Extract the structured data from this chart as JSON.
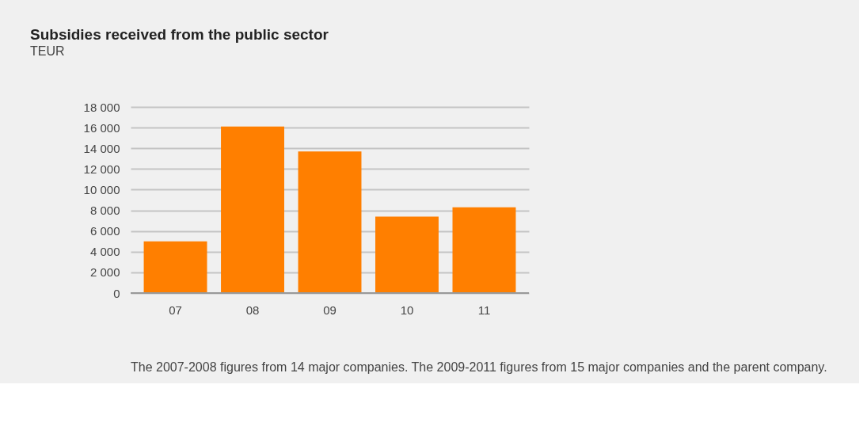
{
  "chart_data": {
    "type": "bar",
    "title": "Subsidies received from the public sector",
    "subtitle": "TEUR",
    "categories": [
      "07",
      "08",
      "09",
      "10",
      "11"
    ],
    "values": [
      5000,
      16100,
      13700,
      7400,
      8300
    ],
    "color": "#ff7f00",
    "ylim": [
      0,
      18000
    ],
    "yticks": [
      {
        "value": 0,
        "label": "0"
      },
      {
        "value": 2000,
        "label": "2 000"
      },
      {
        "value": 4000,
        "label": "4 000"
      },
      {
        "value": 6000,
        "label": "6 000"
      },
      {
        "value": 8000,
        "label": "8 000"
      },
      {
        "value": 10000,
        "label": "10 000"
      },
      {
        "value": 12000,
        "label": "12 000"
      },
      {
        "value": 14000,
        "label": "14 000"
      },
      {
        "value": 16000,
        "label": "16 000"
      },
      {
        "value": 18000,
        "label": "18 000"
      }
    ],
    "grid": "y",
    "annotations": [
      "The 2007-2008 figures from 14 major companies. The 2009-2011 figures from 15 major companies and the parent company."
    ]
  }
}
